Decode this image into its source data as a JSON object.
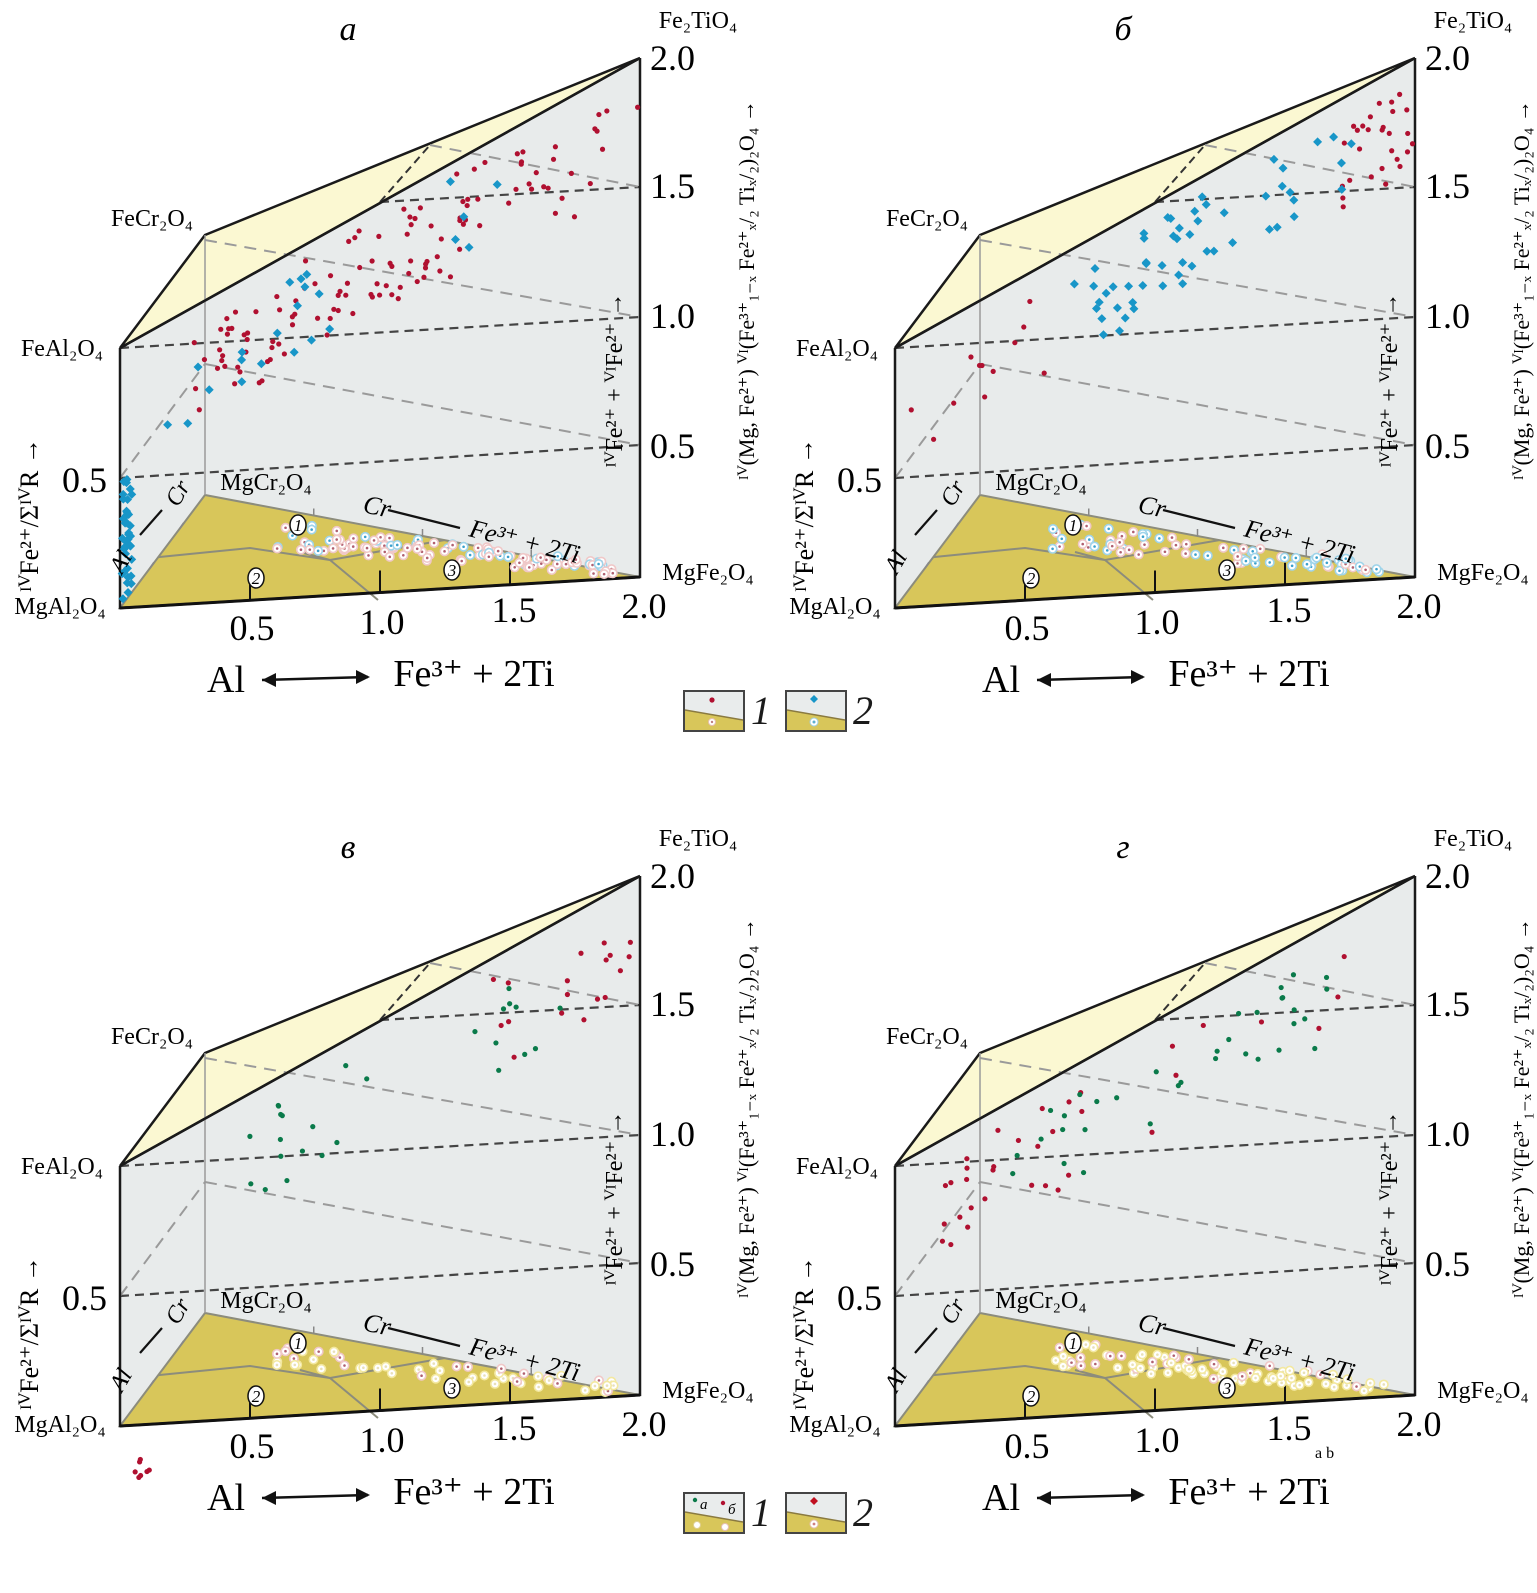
{
  "figure": {
    "panels": [
      {
        "id": "a",
        "label": "а",
        "point_types": [
          "red-dot",
          "blue-diamond"
        ],
        "vertices": {
          "top_right": "Fe₂TiO₄",
          "top_back": "FeCr₂O₄",
          "top_left": "FeAl₂O₄",
          "bottom_left": "MgAl₂O₄",
          "bottom_back": "MgCr₂O₄",
          "bottom_right": "MgFe₂O₄"
        }
      },
      {
        "id": "b",
        "label": "б",
        "point_types": [
          "red-dot",
          "blue-diamond"
        ],
        "vertices": {
          "top_right": "Fe₂TiO₄",
          "top_back": "FeCr₂O₄",
          "top_left": "FeAl₂O₄",
          "bottom_left": "MgAl₂O₄",
          "bottom_back": "MgCr₂O₄",
          "bottom_right": "MgFe₂O₄"
        }
      },
      {
        "id": "c",
        "label": "в",
        "point_types": [
          "green-dot",
          "red-dot"
        ],
        "vertices": {
          "top_right": "Fe₂TiO₄",
          "top_back": "FeCr₂O₄",
          "top_left": "FeAl₂O₄",
          "bottom_left": "MgAl₂O₄",
          "bottom_back": "MgCr₂O₄",
          "bottom_right": "MgFe₂O₄"
        }
      },
      {
        "id": "d",
        "label": "г",
        "point_types": [
          "green-dot",
          "red-dot"
        ],
        "vertices": {
          "top_right": "Fe₂TiO₄",
          "top_back": "FeCr₂O₄",
          "top_left": "FeAl₂O₄",
          "bottom_left": "MgAl₂O₄",
          "bottom_back": "MgCr₂O₄",
          "bottom_right": "MgFe₂O₄"
        },
        "extra_note": "a  b"
      }
    ],
    "axes": {
      "x_ticks": [
        "0.5",
        "1.0",
        "1.5",
        "2.0"
      ],
      "x_label_left": "Al",
      "x_label_right": "Fe³⁺ + 2Ti",
      "right_ticks": [
        "0.5",
        "1.0",
        "1.5",
        "2.0"
      ],
      "left_tick": "0.5",
      "left_axis_label": "ᴵⱽFe²⁺/ΣᴵⱽR",
      "right_inner_label": "ᴵⱽFe²⁺ + ⱽᴵFe²⁺",
      "right_outer_label": "ᴵⱽ(Mg, Fe²⁺) ⱽᴵ(Fe³⁺₁₋ₓ Fe²⁺ₓ/₂ Tiₓ/₂)₂O₄",
      "base_back_edge_label_left": "Cr",
      "base_back_edge_label_right": "Fe³⁺ + 2Ti",
      "base_side_label_bottom": "Al",
      "base_side_label_top": "Cr",
      "field_labels": [
        "1",
        "2",
        "3"
      ]
    },
    "legends": [
      {
        "items": [
          {
            "label": "1",
            "marker": "red-dot"
          },
          {
            "label": "2",
            "marker": "blue-diamond"
          }
        ]
      },
      {
        "items": [
          {
            "label": "1",
            "marker": "green-red-dots",
            "sublabels": [
              "а",
              "б"
            ]
          },
          {
            "label": "2",
            "marker": "red-diamond"
          }
        ]
      }
    ],
    "colors": {
      "face": "#e8ebeb",
      "top_face": "#fbf8d2",
      "base": "#d8c65a",
      "red": "#b01030",
      "blue": "#1896c8",
      "green": "#0a7a4a",
      "edge": "#1a1a1a"
    }
  }
}
